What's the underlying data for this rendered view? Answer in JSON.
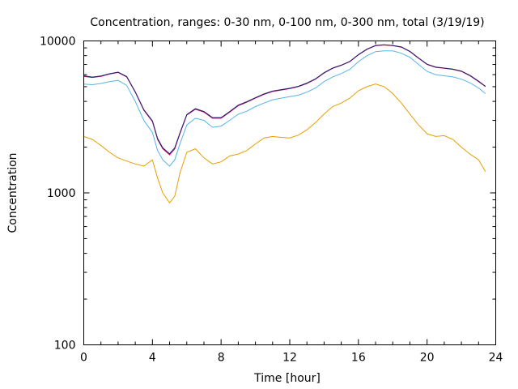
{
  "chart_data": {
    "type": "line",
    "title": "Concentration, ranges: 0-30 nm, 0-100 nm, 0-300 nm, total (3/19/19)",
    "xlabel": "Time [hour]",
    "ylabel": "Concentration",
    "xlim": [
      0,
      24
    ],
    "ylim": [
      100,
      10000
    ],
    "yscale": "log",
    "grid": false,
    "x_ticks": [
      0,
      4,
      8,
      12,
      16,
      20,
      24
    ],
    "x_tick_labels": [
      "0",
      "4",
      "8",
      "12",
      "16",
      "20",
      "24"
    ],
    "y_ticks": [
      100,
      1000,
      10000
    ],
    "y_tick_labels": [
      "100",
      "1000",
      "10000"
    ],
    "series": [
      {
        "name": "0-30 nm",
        "color": "#e69f00",
        "x": [
          0,
          0.5,
          1,
          1.5,
          2,
          2.5,
          3,
          3.5,
          4,
          4.3,
          4.6,
          5,
          5.3,
          5.6,
          6,
          6.5,
          7,
          7.5,
          8,
          8.5,
          9,
          9.5,
          10,
          10.5,
          11,
          11.5,
          12,
          12.5,
          13,
          13.5,
          14,
          14.5,
          15,
          15.5,
          16,
          16.5,
          17,
          17.5,
          18,
          18.5,
          19,
          19.5,
          20,
          20.5,
          21,
          21.5,
          22,
          22.5,
          23,
          23.4
        ],
        "values": [
          2350,
          2250,
          2050,
          1850,
          1700,
          1620,
          1550,
          1500,
          1650,
          1250,
          1000,
          860,
          950,
          1350,
          1850,
          1950,
          1700,
          1550,
          1600,
          1750,
          1800,
          1900,
          2100,
          2300,
          2350,
          2320,
          2300,
          2400,
          2600,
          2900,
          3300,
          3700,
          3900,
          4200,
          4700,
          5000,
          5200,
          5000,
          4500,
          3900,
          3300,
          2800,
          2450,
          2350,
          2380,
          2250,
          2000,
          1800,
          1650,
          1380
        ]
      },
      {
        "name": "0-100 nm",
        "color": "#56b4e9",
        "x": [
          0,
          0.5,
          1,
          1.5,
          2,
          2.5,
          3,
          3.5,
          4,
          4.3,
          4.6,
          5,
          5.3,
          5.6,
          6,
          6.5,
          7,
          7.5,
          8,
          8.5,
          9,
          9.5,
          10,
          10.5,
          11,
          11.5,
          12,
          12.5,
          13,
          13.5,
          14,
          14.5,
          15,
          15.5,
          16,
          16.5,
          17,
          17.5,
          18,
          18.5,
          19,
          19.5,
          20,
          20.5,
          21,
          21.5,
          22,
          22.5,
          23,
          23.4
        ],
        "values": [
          5200,
          5150,
          5250,
          5400,
          5500,
          5100,
          4000,
          3000,
          2500,
          1900,
          1650,
          1500,
          1650,
          2100,
          2800,
          3100,
          3000,
          2700,
          2750,
          3000,
          3300,
          3450,
          3700,
          3900,
          4100,
          4200,
          4300,
          4400,
          4600,
          4900,
          5400,
          5800,
          6100,
          6500,
          7300,
          8000,
          8500,
          8600,
          8600,
          8300,
          7800,
          7000,
          6300,
          6000,
          5900,
          5800,
          5600,
          5300,
          4900,
          4500
        ]
      },
      {
        "name": "0-300 nm",
        "color": "#cc0066",
        "x": [
          0,
          0.5,
          1,
          1.5,
          2,
          2.5,
          3,
          3.5,
          4,
          4.3,
          4.6,
          5,
          5.3,
          5.6,
          6,
          6.5,
          7,
          7.5,
          8,
          8.5,
          9,
          9.5,
          10,
          10.5,
          11,
          11.5,
          12,
          12.5,
          13,
          13.5,
          14,
          14.5,
          15,
          15.5,
          16,
          16.5,
          17,
          17.5,
          18,
          18.5,
          19,
          19.5,
          20,
          20.5,
          21,
          21.5,
          22,
          22.5,
          23,
          23.4
        ],
        "values": [
          5850,
          5750,
          5850,
          6050,
          6200,
          5800,
          4600,
          3500,
          2950,
          2250,
          1950,
          1780,
          1950,
          2450,
          3250,
          3550,
          3400,
          3100,
          3100,
          3400,
          3750,
          3950,
          4200,
          4450,
          4650,
          4750,
          4850,
          5000,
          5250,
          5600,
          6150,
          6600,
          6900,
          7300,
          8100,
          8800,
          9300,
          9400,
          9300,
          9100,
          8500,
          7700,
          7000,
          6700,
          6600,
          6500,
          6300,
          5900,
          5400,
          5000
        ]
      },
      {
        "name": "total",
        "color": "#1f1f6e",
        "x": [
          0,
          0.5,
          1,
          1.5,
          2,
          2.5,
          3,
          3.5,
          4,
          4.3,
          4.6,
          5,
          5.3,
          5.6,
          6,
          6.5,
          7,
          7.5,
          8,
          8.5,
          9,
          9.5,
          10,
          10.5,
          11,
          11.5,
          12,
          12.5,
          13,
          13.5,
          14,
          14.5,
          15,
          15.5,
          16,
          16.5,
          17,
          17.5,
          18,
          18.5,
          19,
          19.5,
          20,
          20.5,
          21,
          21.5,
          22,
          22.5,
          23,
          23.4
        ],
        "values": [
          5900,
          5780,
          5880,
          6080,
          6230,
          5830,
          4630,
          3530,
          2980,
          2280,
          1980,
          1810,
          1980,
          2480,
          3280,
          3580,
          3430,
          3130,
          3130,
          3430,
          3780,
          3980,
          4230,
          4480,
          4680,
          4780,
          4880,
          5030,
          5280,
          5630,
          6180,
          6630,
          6930,
          7330,
          8130,
          8830,
          9330,
          9430,
          9330,
          9130,
          8530,
          7730,
          7030,
          6730,
          6630,
          6530,
          6330,
          5930,
          5430,
          5030
        ]
      }
    ]
  }
}
